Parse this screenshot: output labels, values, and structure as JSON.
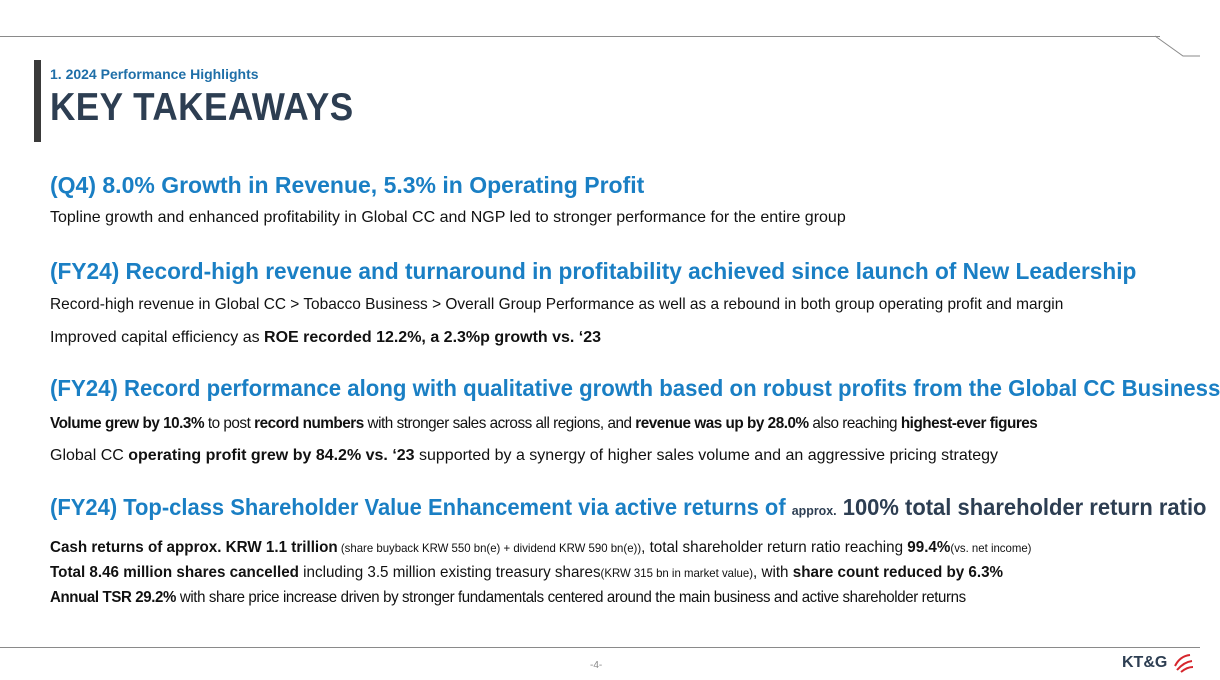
{
  "header": {
    "section": "1. 2024 Performance Highlights",
    "title": "KEY TAKEAWAYS"
  },
  "blocks": [
    {
      "heading": "(Q4) 8.0% Growth in Revenue, 5.3% in Operating Profit",
      "lines": [
        "Topline growth and enhanced profitability in Global CC and NGP led to stronger performance for the entire group"
      ]
    },
    {
      "heading": "(FY24) Record-high revenue and turnaround in profitability achieved since launch of New Leadership",
      "lines": [
        "Record-high revenue in Global CC > Tobacco Business > Overall Group Performance as well as a rebound in both group operating profit and margin",
        {
          "pre": "Improved capital efficiency as ",
          "bold": "ROE recorded 12.2%, a 2.3%p growth vs. ‘23"
        }
      ]
    },
    {
      "heading": "(FY24) Record performance along with qualitative growth based on robust profits from the Global CC Business",
      "lines": [
        {
          "b1": "Volume grew by 10.3%",
          "t1": " to post ",
          "b2": "record numbers",
          "t2": " with stronger sales across all regions, and ",
          "b3": "revenue was up by 28.0%",
          "t3": " also reaching ",
          "b4": "highest-ever figures"
        },
        {
          "t1": "Global CC ",
          "b1": "operating profit grew by 84.2% vs. ‘23",
          "t2": " supported by a synergy of higher sales volume and an aggressive pricing strategy"
        }
      ]
    },
    {
      "heading_parts": {
        "a": "(FY24) Top-class Shareholder Value Enhancement via active returns of ",
        "approx": "approx.",
        "b": " 100% total shareholder return ratio"
      },
      "lines": [
        {
          "b1": "Cash returns of approx. KRW 1.1 trillion",
          "s1": " (share buyback KRW 550 bn(e) + dividend KRW 590 bn(e))",
          "t1": ", total shareholder return ratio reaching ",
          "b2": "99.4%",
          "s2": "(vs. net income)"
        },
        {
          "b1": "Total 8.46 million shares cancelled",
          "t1": " including 3.5 million existing treasury shares",
          "s1": "(KRW 315 bn in market value)",
          "t2": ", with ",
          "b2": "share count reduced by 6.3%"
        },
        {
          "b1": "Annual TSR 29.2%",
          "t1": " with share price increase driven by stronger fundamentals centered around the main business and active shareholder returns"
        }
      ]
    }
  ],
  "footer": {
    "page": "-4-",
    "logo": "KT&G"
  },
  "colors": {
    "heading_blue": "#1a7fc4",
    "title_navy": "#2d3e52",
    "logo_red": "#d6262d"
  }
}
